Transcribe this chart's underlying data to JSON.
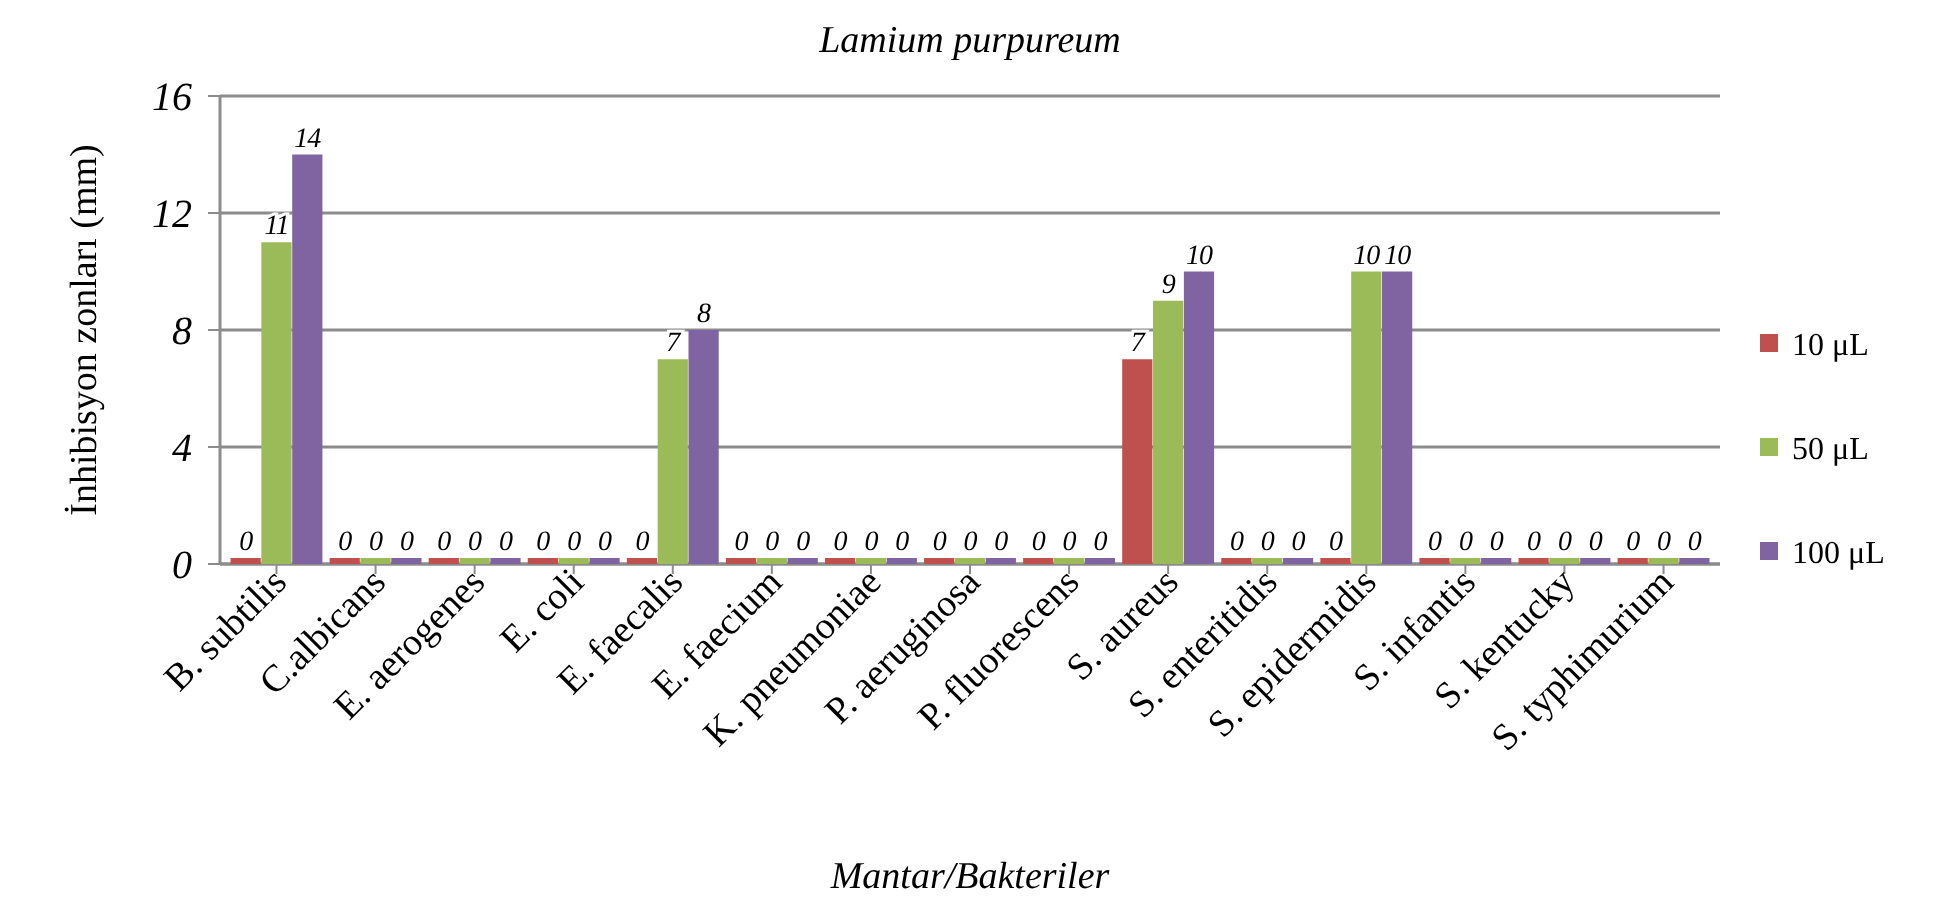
{
  "chart_data": {
    "type": "bar",
    "title": "Lamium purpureum",
    "xlabel": "Mantar/Bakteriler",
    "ylabel": "İnhibisyon zonları (mm)",
    "categories": [
      "B. subtilis",
      "C.albicans",
      "E. aerogenes",
      "E. coli",
      "E. faecalis",
      "E. faecium",
      "K. pneumoniae",
      "P. aeruginosa",
      "P. fluorescens",
      "S. aureus",
      "S. enteritidis",
      "S. epidermidis",
      "S. infantis",
      "S. kentucky",
      "S. typhimurium"
    ],
    "series": [
      {
        "name": "10 μL",
        "color": "#c0504d",
        "values": [
          0,
          0,
          0,
          0,
          0,
          0,
          0,
          0,
          0,
          7,
          0,
          0,
          0,
          0,
          0
        ]
      },
      {
        "name": "50 μL",
        "color": "#9bbb59",
        "values": [
          11,
          0,
          0,
          0,
          7,
          0,
          0,
          0,
          0,
          9,
          0,
          10,
          0,
          0,
          0
        ]
      },
      {
        "name": "100 μL",
        "color": "#8064a2",
        "values": [
          14,
          0,
          0,
          0,
          8,
          0,
          0,
          0,
          0,
          10,
          0,
          10,
          0,
          0,
          0
        ]
      }
    ],
    "ylim": [
      0,
      16
    ],
    "yticks": [
      0,
      4,
      8,
      12,
      16
    ],
    "grid": "y",
    "legend": "right",
    "data_labels": true
  }
}
